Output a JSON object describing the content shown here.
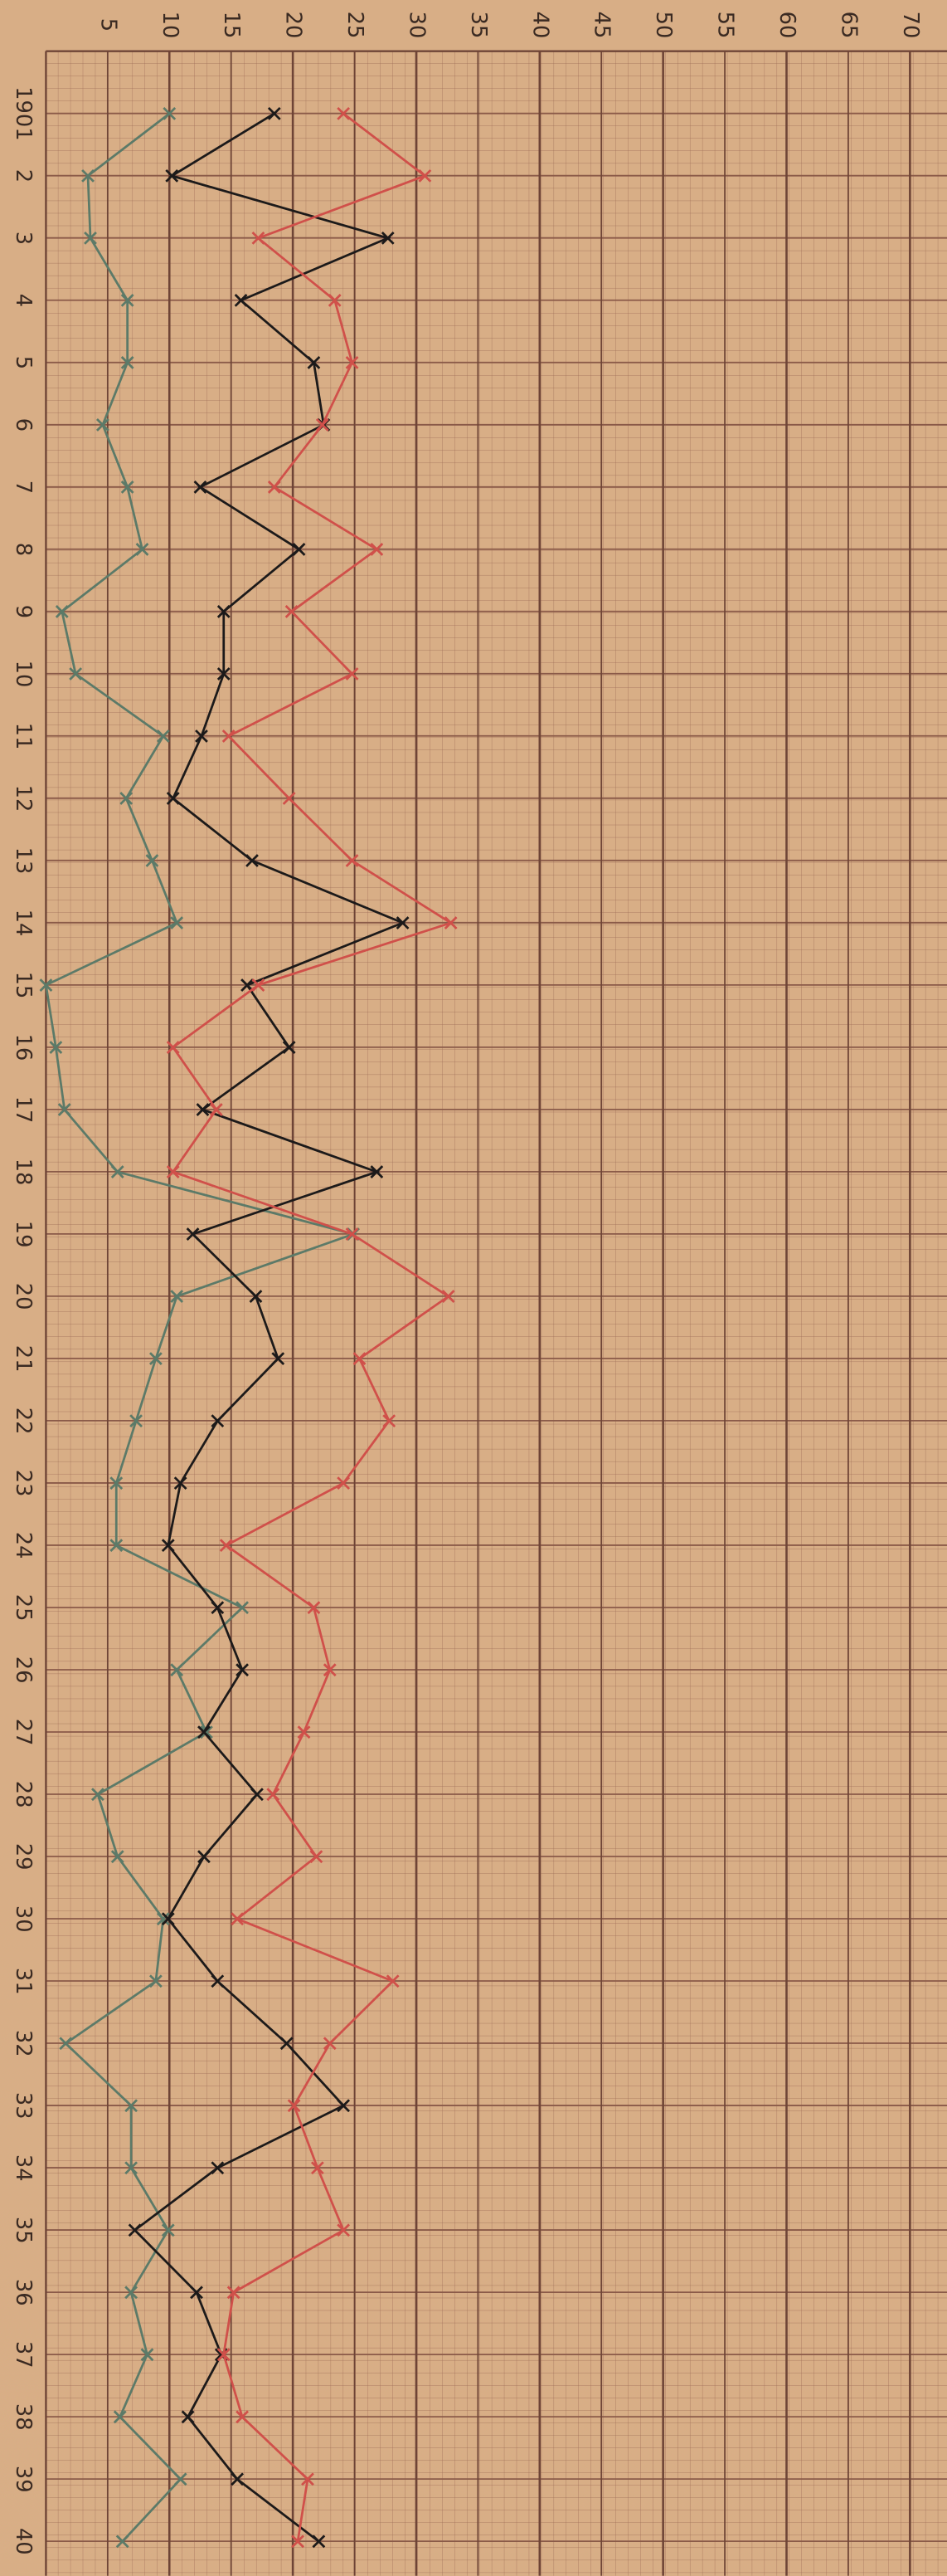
{
  "chart_data": {
    "type": "line",
    "orientation": "horizontal",
    "categories": [
      "1901",
      "2",
      "3",
      "4",
      "5",
      "6",
      "7",
      "8",
      "9",
      "10",
      "11",
      "12",
      "13",
      "14",
      "15",
      "16",
      "17",
      "18",
      "19",
      "20",
      "21",
      "22",
      "23",
      "24",
      "25",
      "26",
      "27",
      "28",
      "29",
      "30",
      "31",
      "32",
      "33",
      "34",
      "35",
      "36",
      "37",
      "38",
      "39",
      "40"
    ],
    "series": [
      {
        "color": "#5c7a68",
        "values": [
          10,
          3.4,
          3.6,
          6.6,
          6.6,
          4.6,
          6.6,
          7.8,
          1.3,
          2.4,
          9.5,
          6.5,
          8.6,
          10.6,
          0,
          0.8,
          1.5,
          5.8,
          24.9,
          10.6,
          8.9,
          7.3,
          5.7,
          5.7,
          15.9,
          10.6,
          13,
          4.2,
          5.8,
          9.5,
          8.9,
          1.6,
          6.9,
          6.9,
          9.9,
          6.9,
          8.2,
          6,
          10.9,
          6.2
        ]
      },
      {
        "color": "#1c1a1a",
        "values": [
          18.5,
          10.2,
          27.7,
          15.8,
          21.7,
          22.5,
          12.5,
          20.5,
          14.4,
          14.4,
          12.6,
          10.3,
          16.7,
          28.9,
          16.3,
          19.7,
          12.7,
          26.8,
          11.9,
          17,
          18.8,
          13.9,
          10.9,
          9.9,
          13.9,
          15.9,
          12.8,
          17.1,
          12.8,
          9.9,
          13.9,
          19.5,
          24.1,
          13.9,
          7.2,
          12.2,
          14.2,
          11.5,
          15.5,
          22.1
        ]
      },
      {
        "color": "#d0504a",
        "values": [
          24.1,
          30.7,
          17.2,
          23.4,
          24.8,
          22.4,
          18.5,
          26.8,
          19.9,
          24.8,
          14.8,
          19.7,
          24.8,
          32.8,
          17.2,
          10.3,
          13.8,
          10.3,
          24.8,
          32.6,
          25.4,
          27.8,
          24.1,
          14.6,
          21.7,
          23,
          20.9,
          18.4,
          21.9,
          15.5,
          28.1,
          23,
          20.1,
          22,
          24.1,
          15.2,
          14.4,
          15.9,
          21.2,
          20.4
        ]
      }
    ],
    "xlim": [
      0,
      73
    ],
    "xticks": [
      5,
      10,
      15,
      20,
      25,
      30,
      35,
      40,
      45,
      50,
      55,
      60,
      65,
      70
    ],
    "grid": true
  }
}
